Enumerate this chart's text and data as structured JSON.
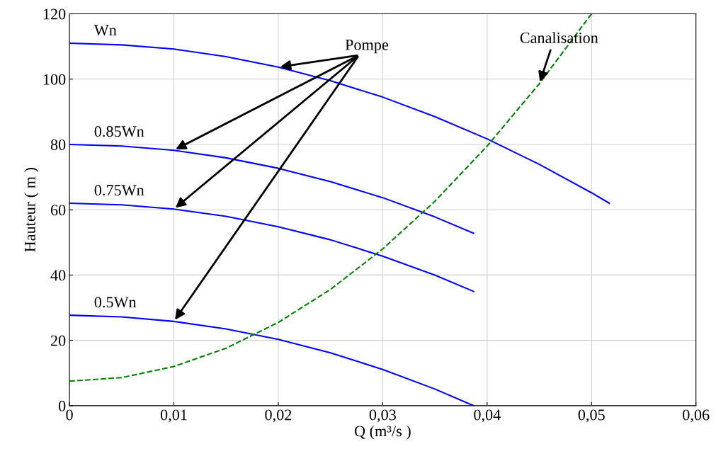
{
  "chart_data": {
    "type": "line",
    "xlabel": "Q (m³/s )",
    "ylabel": "Hauteur ( m )",
    "xlim": [
      0,
      0.06
    ],
    "ylim": [
      0,
      120
    ],
    "xticks": [
      0,
      {
        "value": 0.01,
        "label": "0,01"
      },
      {
        "value": 0.02,
        "label": "0,02"
      },
      {
        "value": 0.03,
        "label": "0,03"
      },
      {
        "value": 0.04,
        "label": "0,04"
      },
      {
        "value": 0.05,
        "label": "0,05"
      },
      {
        "value": 0.06,
        "label": "0,06"
      }
    ],
    "yticks": [
      0,
      20,
      40,
      60,
      80,
      100,
      120
    ],
    "grid": true,
    "line_style": "solid",
    "series": [
      {
        "name": "Wn",
        "color": "#0000ff",
        "x": [
          0,
          0.005,
          0.01,
          0.015,
          0.02,
          0.025,
          0.03,
          0.035,
          0.04,
          0.045,
          0.05,
          0.0517
        ],
        "values": [
          111,
          110.5,
          109.2,
          106.9,
          103.7,
          99.5,
          94.5,
          88.5,
          81.7,
          73.9,
          65.2,
          62
        ]
      },
      {
        "name": "0.85Wn",
        "color": "#0000ff",
        "x": [
          0,
          0.005,
          0.01,
          0.015,
          0.02,
          0.025,
          0.03,
          0.035,
          0.0387
        ],
        "values": [
          80,
          79.5,
          78.2,
          75.9,
          72.7,
          68.6,
          63.7,
          57.8,
          52.8
        ]
      },
      {
        "name": "0.75Wn",
        "color": "#0000ff",
        "x": [
          0,
          0.005,
          0.01,
          0.015,
          0.02,
          0.025,
          0.03,
          0.035,
          0.0387
        ],
        "values": [
          62,
          61.5,
          60.2,
          58,
          54.8,
          50.8,
          45.8,
          40,
          35
        ]
      },
      {
        "name": "0.5Wn",
        "color": "#0000ff",
        "x": [
          0,
          0.005,
          0.01,
          0.015,
          0.02,
          0.025,
          0.03,
          0.035,
          0.0387
        ],
        "values": [
          27.7,
          27.2,
          25.8,
          23.5,
          20.3,
          16.2,
          11.1,
          5.1,
          0
        ]
      },
      {
        "color": "#008000",
        "line_style": "dashed",
        "x": [
          0,
          0.005,
          0.01,
          0.015,
          0.02,
          0.025,
          0.03,
          0.035,
          0.04,
          0.045,
          0.05
        ],
        "values": [
          7.5,
          8.6,
          12,
          17.6,
          25.5,
          35.6,
          48,
          62.6,
          79.5,
          98.6,
          120
        ]
      }
    ],
    "annotations": [
      {
        "text": "Pompe",
        "x": 0.02,
        "y": 103.7
      },
      {
        "text": "Canalisation",
        "x": 0.045,
        "y": 98.6
      }
    ]
  }
}
